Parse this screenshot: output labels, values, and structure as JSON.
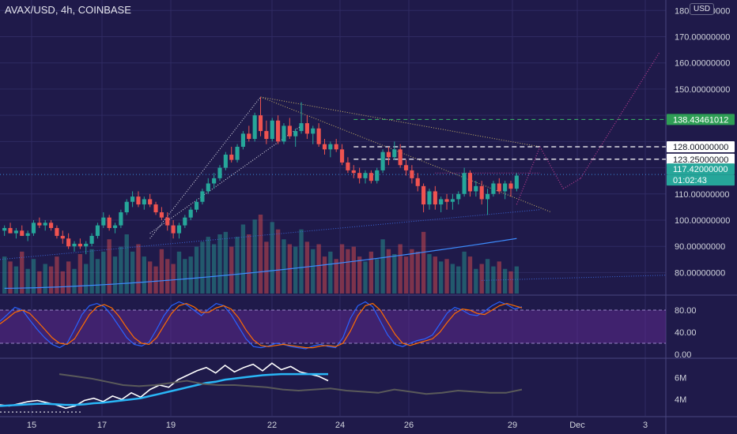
{
  "header": {
    "title": "AVAX/USD, 4h, COINBASE",
    "currency_label": "USD"
  },
  "colors": {
    "background": "#1f1a4a",
    "grid": "#2f2a62",
    "bull": "#26a69a",
    "bear": "#ef5350",
    "stoch_k": "#2962ff",
    "stoch_d": "#ff6d00",
    "stoch_band": "#5b2a8c",
    "macd_white": "#ffffff",
    "macd_cyan": "#29b6f6",
    "macd_gray": "#5a5a5a",
    "dotted_line": "#e6e6ee",
    "projection": "#b03a8a",
    "last_price_bg": "#26a69a",
    "target_bg": "#2e9e55"
  },
  "chart_data": [
    {
      "type": "candlestick",
      "name": "price",
      "y_axis": {
        "ticks": [
          "80.00000000",
          "90.00000000",
          "100.00000000",
          "110.00000000",
          "150.00000000",
          "160.00000000",
          "170.00000000",
          "180.00000000"
        ],
        "ylim": [
          72,
          184
        ]
      },
      "x_axis": {
        "ticks": [
          "15",
          "17",
          "19",
          "22",
          "24",
          "26",
          "29",
          "Dec",
          "3"
        ]
      },
      "price_labels": [
        {
          "value": 138.43461012,
          "text": "138.43461012",
          "style": "target"
        },
        {
          "value": 128.0,
          "text": "128.00000000",
          "style": "level"
        },
        {
          "value": 123.25,
          "text": "123.25000000",
          "style": "level"
        },
        {
          "value": 117.42,
          "text": "117.42000000",
          "style": "last"
        },
        {
          "value": 117.42,
          "text": "01:02:43",
          "style": "countdown"
        }
      ],
      "horizontal_levels": [
        {
          "value": 138.43461012,
          "style": "dashed-green"
        },
        {
          "value": 128.0,
          "style": "dashed-white"
        },
        {
          "value": 123.25,
          "style": "dashed-white"
        },
        {
          "value": 117.42,
          "style": "dotted-last"
        }
      ],
      "candles": [
        [
          96,
          98,
          94,
          97
        ],
        [
          97,
          99,
          95,
          95
        ],
        [
          95,
          97,
          93,
          96
        ],
        [
          96,
          98,
          94,
          94
        ],
        [
          94,
          96,
          92,
          95
        ],
        [
          95,
          100,
          94,
          99
        ],
        [
          99,
          101,
          97,
          98
        ],
        [
          98,
          100,
          96,
          99
        ],
        [
          99,
          100,
          96,
          97
        ],
        [
          97,
          98,
          93,
          94
        ],
        [
          94,
          96,
          91,
          93
        ],
        [
          93,
          95,
          89,
          90
        ],
        [
          90,
          92,
          88,
          91
        ],
        [
          91,
          93,
          89,
          90
        ],
        [
          90,
          92,
          87,
          91
        ],
        [
          91,
          95,
          90,
          94
        ],
        [
          94,
          99,
          93,
          98
        ],
        [
          98,
          103,
          97,
          101
        ],
        [
          101,
          102,
          96,
          97
        ],
        [
          97,
          99,
          95,
          98
        ],
        [
          98,
          104,
          97,
          103
        ],
        [
          103,
          108,
          102,
          107
        ],
        [
          107,
          111,
          105,
          109
        ],
        [
          109,
          111,
          105,
          106
        ],
        [
          106,
          109,
          104,
          108
        ],
        [
          108,
          110,
          105,
          106
        ],
        [
          106,
          107,
          102,
          103
        ],
        [
          103,
          105,
          100,
          101
        ],
        [
          101,
          103,
          96,
          98
        ],
        [
          98,
          100,
          93,
          95
        ],
        [
          95,
          99,
          93,
          98
        ],
        [
          98,
          102,
          97,
          101
        ],
        [
          101,
          105,
          100,
          104
        ],
        [
          104,
          108,
          103,
          107
        ],
        [
          107,
          112,
          106,
          111
        ],
        [
          111,
          116,
          110,
          114
        ],
        [
          114,
          118,
          112,
          116
        ],
        [
          116,
          121,
          115,
          120
        ],
        [
          120,
          126,
          119,
          125
        ],
        [
          125,
          128,
          122,
          123
        ],
        [
          123,
          129,
          122,
          128
        ],
        [
          128,
          134,
          127,
          133
        ],
        [
          133,
          136,
          130,
          131
        ],
        [
          131,
          141,
          130,
          140
        ],
        [
          140,
          147,
          132,
          134
        ],
        [
          134,
          138,
          129,
          131
        ],
        [
          131,
          139,
          130,
          138
        ],
        [
          138,
          140,
          129,
          130
        ],
        [
          130,
          137,
          129,
          136
        ],
        [
          136,
          139,
          131,
          132
        ],
        [
          132,
          135,
          128,
          134
        ],
        [
          134,
          145,
          133,
          137
        ],
        [
          137,
          140,
          131,
          133
        ],
        [
          133,
          136,
          129,
          135
        ],
        [
          135,
          137,
          128,
          129
        ],
        [
          129,
          131,
          125,
          127
        ],
        [
          127,
          130,
          124,
          129
        ],
        [
          129,
          131,
          126,
          127
        ],
        [
          127,
          129,
          121,
          122
        ],
        [
          122,
          124,
          118,
          119
        ],
        [
          119,
          121,
          116,
          118
        ],
        [
          118,
          120,
          114,
          116
        ],
        [
          116,
          119,
          114,
          118
        ],
        [
          118,
          119,
          114,
          115
        ],
        [
          115,
          120,
          114,
          119
        ],
        [
          119,
          127,
          118,
          126
        ],
        [
          126,
          128,
          121,
          124
        ],
        [
          124,
          130,
          123,
          127
        ],
        [
          127,
          129,
          120,
          121
        ],
        [
          121,
          123,
          117,
          119
        ],
        [
          119,
          121,
          114,
          116
        ],
        [
          116,
          118,
          111,
          113
        ],
        [
          113,
          114,
          103,
          106
        ],
        [
          106,
          112,
          104,
          111
        ],
        [
          111,
          113,
          104,
          106
        ],
        [
          106,
          109,
          103,
          108
        ],
        [
          108,
          110,
          104,
          107
        ],
        [
          107,
          110,
          104,
          108
        ],
        [
          108,
          111,
          106,
          110
        ],
        [
          110,
          120,
          109,
          118
        ],
        [
          118,
          119,
          109,
          111
        ],
        [
          111,
          115,
          109,
          113
        ],
        [
          113,
          115,
          106,
          108
        ],
        [
          108,
          112,
          102,
          110
        ],
        [
          110,
          115,
          109,
          114
        ],
        [
          114,
          116,
          110,
          111
        ],
        [
          111,
          115,
          108,
          114
        ],
        [
          114,
          115,
          109,
          112
        ],
        [
          112,
          118,
          111,
          117
        ]
      ],
      "volumes": [
        30,
        26,
        22,
        34,
        20,
        28,
        18,
        24,
        22,
        30,
        18,
        26,
        20,
        32,
        24,
        36,
        28,
        34,
        44,
        30,
        38,
        48,
        34,
        40,
        30,
        26,
        22,
        36,
        28,
        24,
        34,
        28,
        30,
        38,
        42,
        46,
        40,
        48,
        50,
        38,
        46,
        56,
        48,
        60,
        64,
        42,
        58,
        52,
        44,
        40,
        38,
        52,
        42,
        36,
        40,
        30,
        34,
        28,
        40,
        36,
        38,
        30,
        26,
        34,
        28,
        44,
        36,
        32,
        40,
        30,
        36,
        34,
        50,
        32,
        30,
        26,
        28,
        24,
        22,
        34,
        30,
        20,
        24,
        28,
        22,
        26,
        20,
        18,
        22
      ]
    },
    {
      "type": "line",
      "name": "stochastic",
      "y_axis": {
        "ticks": [
          "80.00",
          "40.00",
          "0.00"
        ],
        "ylim": [
          0,
          100
        ],
        "band": [
          20,
          80
        ]
      },
      "series": [
        {
          "key": "k",
          "values": [
            60,
            72,
            85,
            80,
            62,
            45,
            30,
            18,
            12,
            20,
            45,
            72,
            88,
            92,
            86,
            70,
            50,
            30,
            18,
            15,
            22,
            45,
            70,
            88,
            95,
            90,
            80,
            70,
            82,
            92,
            88,
            72,
            50,
            28,
            14,
            12,
            15,
            20,
            18,
            14,
            12,
            10,
            15,
            18,
            14,
            12,
            30,
            65,
            88,
            95,
            86,
            60,
            35,
            18,
            14,
            20,
            25,
            28,
            35,
            55,
            75,
            85,
            80,
            72,
            70,
            78,
            88,
            95,
            90,
            82,
            86
          ]
        },
        {
          "key": "d",
          "values": [
            55,
            65,
            76,
            80,
            74,
            60,
            45,
            30,
            20,
            18,
            28,
            50,
            72,
            86,
            90,
            84,
            68,
            48,
            30,
            20,
            18,
            30,
            52,
            74,
            88,
            92,
            86,
            76,
            76,
            84,
            88,
            82,
            66,
            44,
            26,
            16,
            14,
            16,
            18,
            16,
            14,
            12,
            12,
            15,
            16,
            14,
            20,
            42,
            70,
            88,
            92,
            80,
            58,
            36,
            20,
            16,
            20,
            24,
            28,
            40,
            58,
            74,
            82,
            80,
            74,
            72,
            80,
            88,
            92,
            88,
            84
          ]
        }
      ]
    },
    {
      "type": "line",
      "name": "macd-like",
      "y_axis": {
        "ticks": [
          "6M",
          "4M"
        ],
        "ylim": [
          2.5,
          7.6
        ]
      },
      "series": [
        {
          "key": "white",
          "values": [
            3.5,
            3.4,
            3.6,
            3.8,
            3.9,
            3.7,
            3.5,
            3.2,
            3.4,
            3.9,
            4.1,
            3.8,
            4.3,
            4.0,
            4.6,
            4.2,
            4.9,
            5.3,
            5.1,
            5.8,
            6.2,
            6.6,
            6.9,
            6.4,
            7.1,
            6.5,
            6.9,
            7.2,
            6.6,
            7.3,
            6.7,
            7.0,
            6.5,
            6.3,
            6.1,
            5.7
          ]
        },
        {
          "key": "cyan",
          "values": [
            3.4,
            3.45,
            3.5,
            3.55,
            3.6,
            3.6,
            3.55,
            3.5,
            3.5,
            3.55,
            3.65,
            3.7,
            3.8,
            3.9,
            4.0,
            4.1,
            4.3,
            4.5,
            4.7,
            4.9,
            5.1,
            5.3,
            5.5,
            5.6,
            5.8,
            5.9,
            6.0,
            6.1,
            6.2,
            6.25,
            6.3,
            6.3,
            6.3,
            6.3,
            6.3,
            6.3
          ]
        },
        {
          "key": "gray",
          "values": [
            6.3,
            6.1,
            5.9,
            5.6,
            5.3,
            5.2,
            5.3,
            5.5,
            5.7,
            5.4,
            5.3,
            5.3,
            5.2,
            5.1,
            4.9,
            4.8,
            4.9,
            5.0,
            4.8,
            4.7,
            4.6,
            4.9,
            4.7,
            4.5,
            4.6,
            4.8,
            4.7,
            4.6,
            4.6,
            4.9
          ]
        }
      ]
    }
  ]
}
